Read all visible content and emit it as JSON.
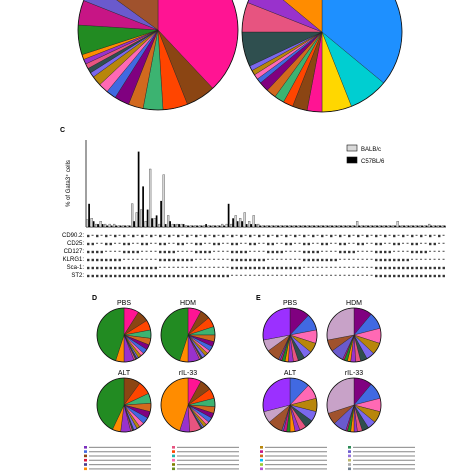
{
  "colors": {
    "slice_palette": [
      "#c8a2c8",
      "#9b30ff",
      "#ff00ff",
      "#1e90ff",
      "#00ced1",
      "#ffd700",
      "#ff1493",
      "#8b4513",
      "#ff4500",
      "#3cb371",
      "#d2691e",
      "#800080",
      "#4169e1",
      "#ff69b4",
      "#b8860b",
      "#7b68ee",
      "#2f4f4f",
      "#e75480",
      "#9932cc",
      "#ff8c00",
      "#228b22",
      "#c71585",
      "#6a5acd",
      "#a0522d"
    ],
    "balb": "#d9d9d9",
    "c57": "#000000",
    "legend_swatches": [
      "#7b2fbe",
      "#e75480",
      "#b8860b",
      "#2e8b57",
      "#4169e1",
      "#ff4500",
      "#c71585",
      "#6a5acd",
      "#8b4513",
      "#20b2aa",
      "#d2691e",
      "#9370db",
      "#dc143c",
      "#ff69b4",
      "#00bfff",
      "#bdb76b",
      "#483d8b",
      "#808000",
      "#9acd32",
      "#a9a9a9",
      "#ff8c00",
      "#6b8e23",
      "#ba55d3",
      "#708090"
    ]
  },
  "panels": {
    "c": "C",
    "d": "D",
    "e": "E"
  },
  "chart_data": [
    {
      "type": "pie",
      "panel": "top-left",
      "values": [
        38,
        6,
        5,
        4,
        3,
        3,
        2,
        2,
        2,
        1,
        1,
        1,
        1,
        1,
        6,
        5,
        4,
        15
      ]
    },
    {
      "type": "pie",
      "panel": "top-right",
      "values": [
        36,
        8,
        6,
        3,
        3,
        2,
        2,
        2,
        2,
        1,
        1,
        1,
        1,
        7,
        6,
        5,
        14
      ]
    },
    {
      "type": "bar",
      "panel": "C",
      "ylabel": "% of Gata3⁺ cells",
      "legend": [
        "BALB/c",
        "C57BL/6"
      ],
      "legend_position": "top-right",
      "ylim": [
        0,
        30
      ],
      "series": [
        {
          "name": "BALB/c",
          "values": [
            2.5,
            3,
            1,
            2,
            1,
            1,
            1,
            0.5,
            0.5,
            0.5,
            8,
            5,
            6,
            2,
            20,
            3,
            1,
            18,
            4,
            1,
            1,
            1,
            0.5,
            0.5,
            0.5,
            0.5,
            0.5,
            0.5,
            0.5,
            0.5,
            1,
            1,
            1,
            4,
            3,
            5,
            2,
            4,
            1,
            0.5,
            0.5,
            0.5,
            0.5,
            0.5,
            0.5,
            0.5,
            0.5,
            0.5,
            0.5,
            0.5,
            0.5,
            0.5,
            0.5,
            0.5,
            0.5,
            0.5,
            0.5,
            0.5,
            0.5,
            0.5,
            2,
            0.5,
            0.5,
            0.5,
            0.5,
            0.5,
            0.5,
            0.5,
            0.5,
            2,
            0.5,
            0.5,
            0.5,
            0.5,
            0.5,
            0.5,
            1,
            0.5,
            0.5,
            0.5
          ]
        },
        {
          "name": "C57BL/6",
          "values": [
            8,
            2,
            1,
            1,
            0.5,
            0.5,
            0.5,
            0.5,
            0.5,
            0.5,
            2,
            26,
            14,
            6,
            3,
            4,
            9,
            1,
            2,
            1,
            1,
            1,
            0.5,
            0.5,
            0.5,
            0.5,
            1,
            0.5,
            0.5,
            0.5,
            0.5,
            8,
            3,
            2,
            2,
            1,
            1,
            1,
            0.5,
            0.5,
            0.5,
            0.5,
            0.5,
            0.5,
            0.5,
            0.5,
            0.5,
            0.5,
            0.5,
            0.5,
            0.5,
            0.5,
            0.5,
            0.5,
            0.5,
            0.5,
            0.5,
            0.5,
            0.5,
            0.5,
            0.5,
            0.5,
            0.5,
            0.5,
            0.5,
            0.5,
            0.5,
            0.5,
            0.5,
            0.5,
            0.5,
            0.5,
            0.5,
            0.5,
            0.5,
            0.5,
            0.5,
            0.5,
            0.5,
            0.5
          ]
        }
      ],
      "marker_rows": [
        "CD90.2:",
        "CD25:",
        "CD127:",
        "KLRG1:",
        "Sca-1:",
        "ST2:"
      ]
    },
    {
      "type": "pie",
      "panel": "D",
      "title": "PBS",
      "values": [
        9,
        7,
        6,
        5,
        4,
        3,
        3,
        2,
        2,
        1,
        1,
        1,
        6,
        5,
        45
      ]
    },
    {
      "type": "pie",
      "panel": "D",
      "title": "HDM",
      "values": [
        8,
        6,
        6,
        5,
        4,
        3,
        3,
        2,
        2,
        2,
        1,
        1,
        7,
        5,
        45
      ]
    },
    {
      "type": "pie",
      "panel": "D",
      "title": "ALT",
      "values": [
        10,
        8,
        6,
        5,
        4,
        4,
        3,
        2,
        2,
        1,
        1,
        6,
        5,
        43
      ]
    },
    {
      "type": "pie",
      "panel": "D",
      "title": "rIL-33",
      "values": [
        8,
        7,
        6,
        5,
        4,
        3,
        3,
        2,
        2,
        1,
        1,
        7,
        6,
        45
      ]
    },
    {
      "type": "pie",
      "panel": "E",
      "title": "PBS",
      "values": [
        12,
        10,
        8,
        6,
        5,
        4,
        3,
        3,
        2,
        2,
        1,
        1,
        8,
        7,
        28
      ]
    },
    {
      "type": "pie",
      "panel": "E",
      "title": "HDM",
      "values": [
        11,
        10,
        9,
        7,
        5,
        4,
        3,
        3,
        2,
        2,
        1,
        8,
        7,
        28
      ]
    },
    {
      "type": "pie",
      "panel": "E",
      "title": "ALT",
      "values": [
        12,
        9,
        8,
        6,
        5,
        4,
        3,
        3,
        2,
        2,
        1,
        9,
        7,
        29
      ]
    },
    {
      "type": "pie",
      "panel": "E",
      "title": "rIL-33",
      "values": [
        11,
        10,
        8,
        7,
        5,
        4,
        3,
        2,
        2,
        2,
        1,
        8,
        7,
        30
      ]
    }
  ]
}
